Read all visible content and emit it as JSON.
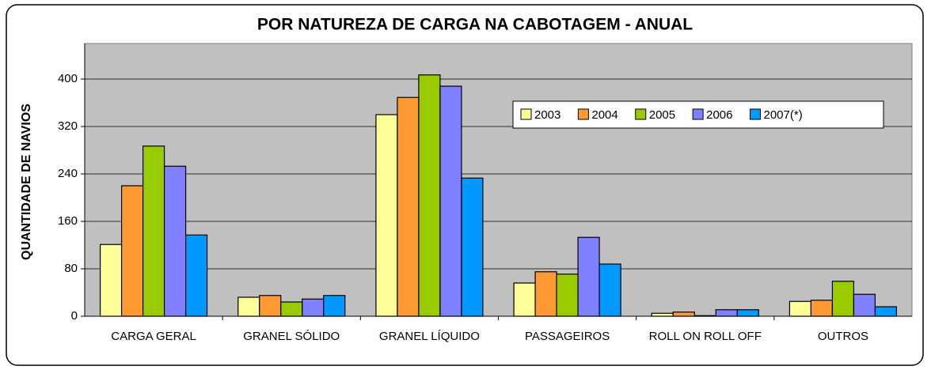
{
  "chart_data": {
    "type": "bar",
    "title": "POR NATUREZA DE CARGA NA CABOTAGEM - ANUAL",
    "y_label": "QUANTIDADE DE NAVIOS",
    "categories": [
      "CARGA GERAL",
      "GRANEL SÓLIDO",
      "GRANEL LÍQUIDO",
      "PASSAGEIROS",
      "ROLL ON ROLL OFF",
      "OUTROS"
    ],
    "series": [
      {
        "name": "2003",
        "color": "#ffff99",
        "values": [
          121,
          32,
          340,
          56,
          5,
          25
        ]
      },
      {
        "name": "2004",
        "color": "#ff9933",
        "values": [
          220,
          35,
          369,
          75,
          7,
          27
        ]
      },
      {
        "name": "2005",
        "color": "#99cc00",
        "values": [
          287,
          24,
          407,
          71,
          1,
          59
        ]
      },
      {
        "name": "2006",
        "color": "#8080ff",
        "values": [
          253,
          29,
          388,
          133,
          11,
          37
        ]
      },
      {
        "name": "2007(*)",
        "color": "#0099ff",
        "values": [
          137,
          35,
          233,
          88,
          11,
          16
        ]
      }
    ],
    "ylim": [
      0,
      460
    ],
    "yticks": [
      0,
      80,
      160,
      240,
      320,
      400
    ],
    "grid": true,
    "legend": "top-right"
  }
}
